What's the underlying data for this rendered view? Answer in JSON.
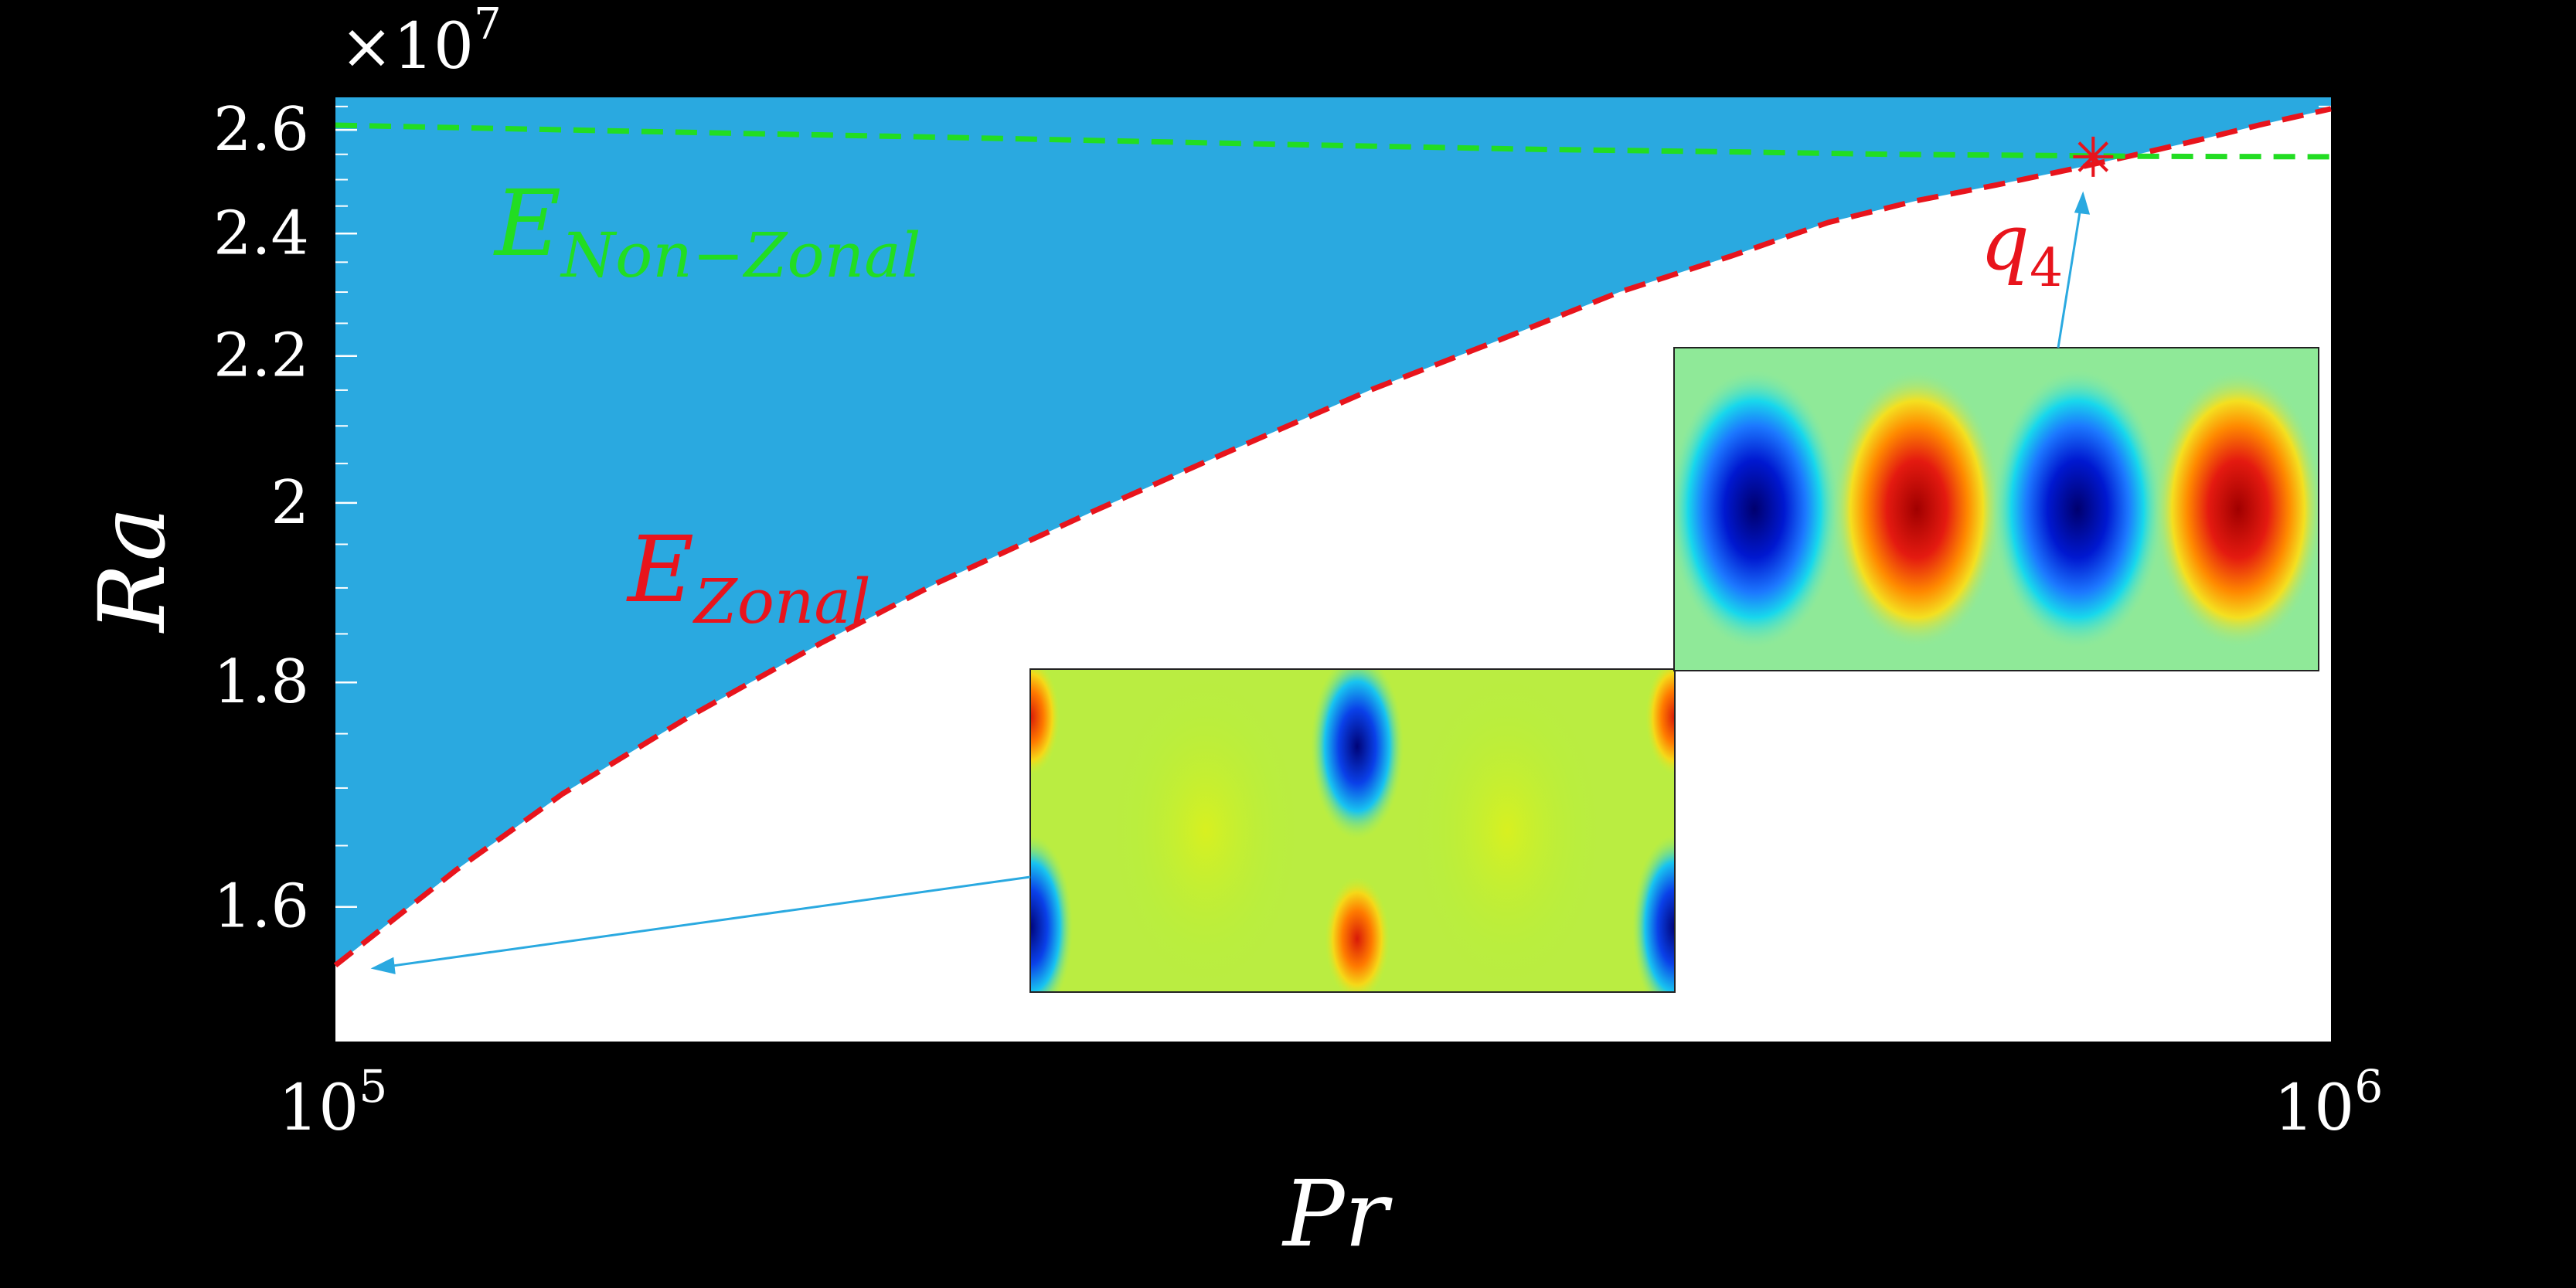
{
  "chart_data": {
    "type": "area",
    "xscale": "log",
    "xlim": [
      100000,
      1000000
    ],
    "ylim": [
      1.5,
      2.67
    ],
    "y_multiplier": "×10",
    "y_multiplier_exp": "7",
    "xlabel": "Pr",
    "ylabel": "Ra",
    "x_ticks": [
      {
        "value": 100000,
        "base": "10",
        "exp": "5"
      },
      {
        "value": 1000000,
        "base": "10",
        "exp": "6"
      }
    ],
    "y_ticks": [
      {
        "value": 1.6,
        "label": "1.6"
      },
      {
        "value": 1.8,
        "label": "1.8"
      },
      {
        "value": 2.0,
        "label": "2"
      },
      {
        "value": 2.2,
        "label": "2.2"
      },
      {
        "value": 2.4,
        "label": "2.4"
      },
      {
        "value": 2.6,
        "label": "2.6"
      }
    ],
    "series": [
      {
        "name": "E_Zonal",
        "label_main": "E",
        "label_sub": "Zonal",
        "color": "#e8141c",
        "x": [
          100000,
          115000,
          130000,
          150000,
          175000,
          200000,
          240000,
          280000,
          330000,
          380000,
          440000,
          500000,
          560000,
          620000,
          680000,
          740000,
          800000,
          860000,
          920000,
          1000000
        ],
        "y": [
          1.555,
          1.63,
          1.695,
          1.765,
          1.84,
          1.905,
          1.99,
          2.065,
          2.15,
          2.22,
          2.3,
          2.36,
          2.42,
          2.46,
          2.49,
          2.52,
          2.55,
          2.58,
          2.61,
          2.645
        ]
      },
      {
        "name": "E_Non-Zonal",
        "label_main": "E",
        "label_sub": "Non−Zonal",
        "color": "#22dd22",
        "x": [
          100000,
          150000,
          200000,
          300000,
          400000,
          500000,
          600000,
          700000,
          800000,
          1000000
        ],
        "y": [
          2.61,
          2.595,
          2.585,
          2.57,
          2.56,
          2.555,
          2.55,
          2.548,
          2.546,
          2.545
        ]
      }
    ],
    "fill_color": "#2aa9e0",
    "annotations": [
      {
        "type": "star",
        "label_main": "q",
        "label_sub": "4",
        "x": 760000,
        "y": 2.545,
        "color": "#e8141c"
      }
    ],
    "insets": [
      {
        "name": "inset-zonal-mode",
        "points_to": {
          "x": 102000,
          "y": 1.555
        }
      },
      {
        "name": "inset-nonzonal-mode",
        "points_to": {
          "x": 810000,
          "y": 2.545
        }
      }
    ]
  }
}
